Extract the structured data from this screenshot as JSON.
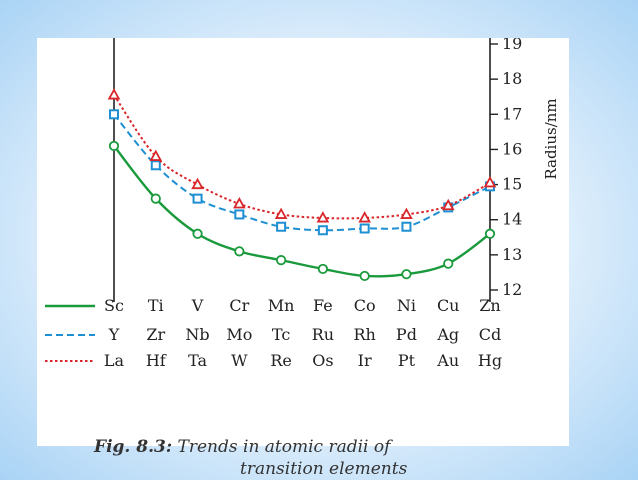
{
  "chart_data": {
    "type": "line",
    "x": [
      1,
      2,
      3,
      4,
      5,
      6,
      7,
      8,
      9,
      10
    ],
    "ylabel": "Radius/nm",
    "ylim": [
      12,
      19
    ],
    "yticks": [
      "12",
      "13",
      "14",
      "15",
      "16",
      "17",
      "18",
      "19"
    ],
    "series": [
      {
        "elements": [
          "Sc",
          "Ti",
          "V",
          "Cr",
          "Mn",
          "Fe",
          "Co",
          "Ni",
          "Cu",
          "Zn"
        ],
        "values": [
          16.1,
          14.6,
          13.6,
          13.1,
          12.85,
          12.6,
          12.4,
          12.45,
          12.75,
          13.6
        ],
        "style": "solid",
        "marker": "circle",
        "color": "#1a9a3c"
      },
      {
        "elements": [
          "Y",
          "Zr",
          "Nb",
          "Mo",
          "Tc",
          "Ru",
          "Rh",
          "Pd",
          "Ag",
          "Cd"
        ],
        "values": [
          17.0,
          15.55,
          14.6,
          14.15,
          13.8,
          13.7,
          13.75,
          13.8,
          14.35,
          14.95
        ],
        "style": "dashed",
        "marker": "square",
        "color": "#1e8fd2"
      },
      {
        "elements": [
          "La",
          "Hf",
          "Ta",
          "W",
          "Re",
          "Os",
          "Ir",
          "Pt",
          "Au",
          "Hg"
        ],
        "values": [
          17.55,
          15.8,
          15.0,
          14.45,
          14.15,
          14.05,
          14.05,
          14.15,
          14.4,
          15.05
        ],
        "style": "dotted",
        "marker": "triangle",
        "color": "#d9262b"
      }
    ]
  },
  "caption": {
    "figure_number": "Fig. 8.3:",
    "line1": "Trends in atomic radii of",
    "line2": "transition elements"
  }
}
